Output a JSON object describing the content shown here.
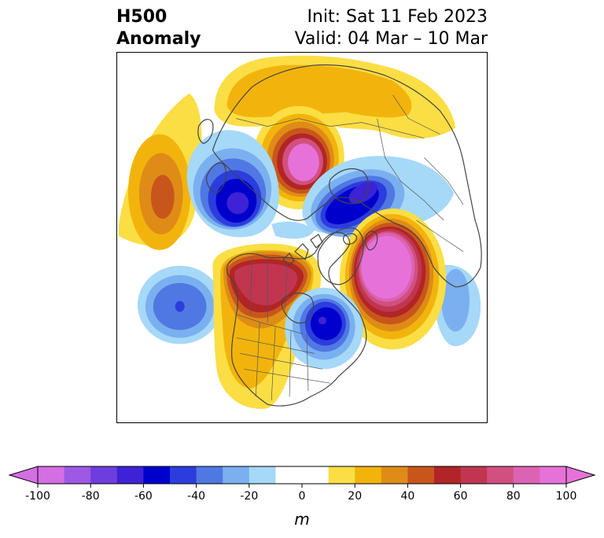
{
  "title": {
    "left_line1": "H500",
    "left_line2": "Anomaly",
    "right_line1": "Init: Sat 11 Feb 2023",
    "right_line2": "Valid: 04 Mar – 10 Mar"
  },
  "colorbar": {
    "unit": "m",
    "ticks": [
      {
        "value": -100,
        "label": "-100"
      },
      {
        "value": -80,
        "label": "-80"
      },
      {
        "value": -60,
        "label": "-60"
      },
      {
        "value": -40,
        "label": "-40"
      },
      {
        "value": -20,
        "label": "-20"
      },
      {
        "value": 0,
        "label": "0"
      },
      {
        "value": 20,
        "label": "20"
      },
      {
        "value": 40,
        "label": "40"
      },
      {
        "value": 60,
        "label": "60"
      },
      {
        "value": 80,
        "label": "80"
      },
      {
        "value": 100,
        "label": "100"
      }
    ],
    "range": [
      -100,
      100
    ],
    "step": 10,
    "extend": "both",
    "under_color": "#d46ee3",
    "over_color": "#e672d9",
    "colors": [
      "#d46ee3",
      "#9d59e3",
      "#6e3ddd",
      "#3d22d6",
      "#0000cd",
      "#2b3ddd",
      "#5078e3",
      "#7ab0ef",
      "#a6d8f8",
      "#ffffff",
      "#ffffff",
      "#fbde44",
      "#f2b40c",
      "#de8c17",
      "#c8561c",
      "#b22526",
      "#c03650",
      "#d25080",
      "#dc63b4",
      "#e672d9"
    ]
  },
  "map": {
    "projection": "north polar stereographic",
    "anomalies": [
      {
        "name": "north pacific ridge",
        "sign": "positive",
        "peak": 45
      },
      {
        "name": "siberian ridge",
        "sign": "positive",
        "peak": 85
      },
      {
        "name": "north atlantic ridge",
        "sign": "positive",
        "peak": 95
      },
      {
        "name": "western north america ridge",
        "sign": "positive",
        "peak": 65
      },
      {
        "name": "arctic russia trough",
        "sign": "negative",
        "peak": -70
      },
      {
        "name": "canada trough",
        "sign": "negative",
        "peak": -75
      },
      {
        "name": "eastern north america trough",
        "sign": "negative",
        "peak": -65
      },
      {
        "name": "gulf of alaska trough",
        "sign": "negative",
        "peak": -45
      },
      {
        "name": "subtropical atlantic trough",
        "sign": "negative",
        "peak": -30
      }
    ]
  }
}
